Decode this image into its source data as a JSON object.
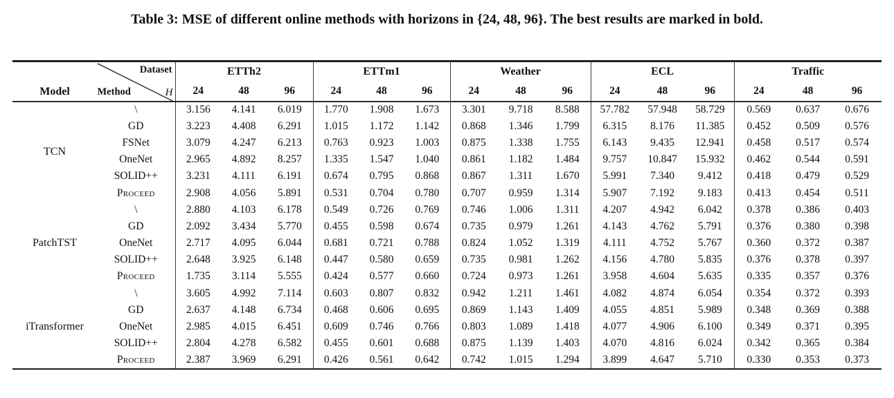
{
  "caption": "Table 3: MSE of different online methods with horizons in {24, 48, 96}. The best results are marked in bold.",
  "table": {
    "corner": {
      "model_label": "Model",
      "dataset_label": "Dataset",
      "method_label": "Method",
      "horizon_symbol": "H"
    },
    "datasets": [
      "ETTh2",
      "ETTm1",
      "Weather",
      "ECL",
      "Traffic"
    ],
    "horizons": [
      "24",
      "48",
      "96"
    ],
    "blocks": [
      {
        "model": "TCN",
        "rows": [
          {
            "method": "\\",
            "sc": false,
            "values": [
              "3.156",
              "4.141",
              "6.019",
              "1.770",
              "1.908",
              "1.673",
              "3.301",
              "9.718",
              "8.588",
              "57.782",
              "57.948",
              "58.729",
              "0.569",
              "0.637",
              "0.676"
            ]
          },
          {
            "method": "GD",
            "sc": false,
            "values": [
              "3.223",
              "4.408",
              "6.291",
              "1.015",
              "1.172",
              "1.142",
              "0.868",
              "1.346",
              "1.799",
              "6.315",
              "8.176",
              "11.385",
              "0.452",
              "0.509",
              "0.576"
            ]
          },
          {
            "method": "FSNet",
            "sc": false,
            "values": [
              "3.079",
              "4.247",
              "6.213",
              "0.763",
              "0.923",
              "1.003",
              "0.875",
              "1.338",
              "1.755",
              "6.143",
              "9.435",
              "12.941",
              "0.458",
              "0.517",
              "0.574"
            ]
          },
          {
            "method": "OneNet",
            "sc": false,
            "values": [
              "2.965",
              "4.892",
              "8.257",
              "1.335",
              "1.547",
              "1.040",
              "0.861",
              "1.182",
              "1.484",
              "9.757",
              "10.847",
              "15.932",
              "0.462",
              "0.544",
              "0.591"
            ]
          },
          {
            "method": "SOLID++",
            "sc": false,
            "values": [
              "3.231",
              "4.111",
              "6.191",
              "0.674",
              "0.795",
              "0.868",
              "0.867",
              "1.311",
              "1.670",
              "5.991",
              "7.340",
              "9.412",
              "0.418",
              "0.479",
              "0.529"
            ]
          },
          {
            "method": "Proceed",
            "sc": true,
            "values": [
              "2.908",
              "4.056",
              "5.891",
              "0.531",
              "0.704",
              "0.780",
              "0.707",
              "0.959",
              "1.314",
              "5.907",
              "7.192",
              "9.183",
              "0.413",
              "0.454",
              "0.511"
            ],
            "bold": [
              1,
              1,
              1,
              1,
              1,
              1,
              1,
              1,
              1,
              1,
              1,
              1,
              1,
              1,
              1
            ]
          }
        ]
      },
      {
        "model": "PatchTST",
        "rows": [
          {
            "method": "\\",
            "sc": false,
            "values": [
              "2.880",
              "4.103",
              "6.178",
              "0.549",
              "0.726",
              "0.769",
              "0.746",
              "1.006",
              "1.311",
              "4.207",
              "4.942",
              "6.042",
              "0.378",
              "0.386",
              "0.403"
            ]
          },
          {
            "method": "GD",
            "sc": false,
            "values": [
              "2.092",
              "3.434",
              "5.770",
              "0.455",
              "0.598",
              "0.674",
              "0.735",
              "0.979",
              "1.261",
              "4.143",
              "4.762",
              "5.791",
              "0.376",
              "0.380",
              "0.398"
            ]
          },
          {
            "method": "OneNet",
            "sc": false,
            "values": [
              "2.717",
              "4.095",
              "6.044",
              "0.681",
              "0.721",
              "0.788",
              "0.824",
              "1.052",
              "1.319",
              "4.111",
              "4.752",
              "5.767",
              "0.360",
              "0.372",
              "0.387"
            ]
          },
          {
            "method": "SOLID++",
            "sc": false,
            "values": [
              "2.648",
              "3.925",
              "6.148",
              "0.447",
              "0.580",
              "0.659",
              "0.735",
              "0.981",
              "1.262",
              "4.156",
              "4.780",
              "5.835",
              "0.376",
              "0.378",
              "0.397"
            ],
            "bold": [
              0,
              0,
              0,
              0,
              0,
              1,
              0,
              0,
              0,
              0,
              0,
              0,
              0,
              0,
              0
            ]
          },
          {
            "method": "Proceed",
            "sc": true,
            "values": [
              "1.735",
              "3.114",
              "5.555",
              "0.424",
              "0.577",
              "0.660",
              "0.724",
              "0.973",
              "1.261",
              "3.958",
              "4.604",
              "5.635",
              "0.335",
              "0.357",
              "0.376"
            ],
            "bold": [
              1,
              1,
              1,
              1,
              1,
              0,
              1,
              1,
              1,
              1,
              1,
              1,
              1,
              1,
              1
            ]
          }
        ]
      },
      {
        "model": "iTransformer",
        "rows": [
          {
            "method": "\\",
            "sc": false,
            "values": [
              "3.605",
              "4.992",
              "7.114",
              "0.603",
              "0.807",
              "0.832",
              "0.942",
              "1.211",
              "1.461",
              "4.082",
              "4.874",
              "6.054",
              "0.354",
              "0.372",
              "0.393"
            ]
          },
          {
            "method": "GD",
            "sc": false,
            "values": [
              "2.637",
              "4.148",
              "6.734",
              "0.468",
              "0.606",
              "0.695",
              "0.869",
              "1.143",
              "1.409",
              "4.055",
              "4.851",
              "5.989",
              "0.348",
              "0.369",
              "0.388"
            ]
          },
          {
            "method": "OneNet",
            "sc": false,
            "values": [
              "2.985",
              "4.015",
              "6.451",
              "0.609",
              "0.746",
              "0.766",
              "0.803",
              "1.089",
              "1.418",
              "4.077",
              "4.906",
              "6.100",
              "0.349",
              "0.371",
              "0.395"
            ]
          },
          {
            "method": "SOLID++",
            "sc": false,
            "values": [
              "2.804",
              "4.278",
              "6.582",
              "0.455",
              "0.601",
              "0.688",
              "0.875",
              "1.139",
              "1.403",
              "4.070",
              "4.816",
              "6.024",
              "0.342",
              "0.365",
              "0.384"
            ]
          },
          {
            "method": "Proceed",
            "sc": true,
            "values": [
              "2.387",
              "3.969",
              "6.291",
              "0.426",
              "0.561",
              "0.642",
              "0.742",
              "1.015",
              "1.294",
              "3.899",
              "4.647",
              "5.710",
              "0.330",
              "0.353",
              "0.373"
            ],
            "bold": [
              1,
              1,
              1,
              1,
              1,
              1,
              1,
              1,
              1,
              1,
              1,
              1,
              1,
              1,
              1
            ]
          }
        ]
      }
    ]
  }
}
